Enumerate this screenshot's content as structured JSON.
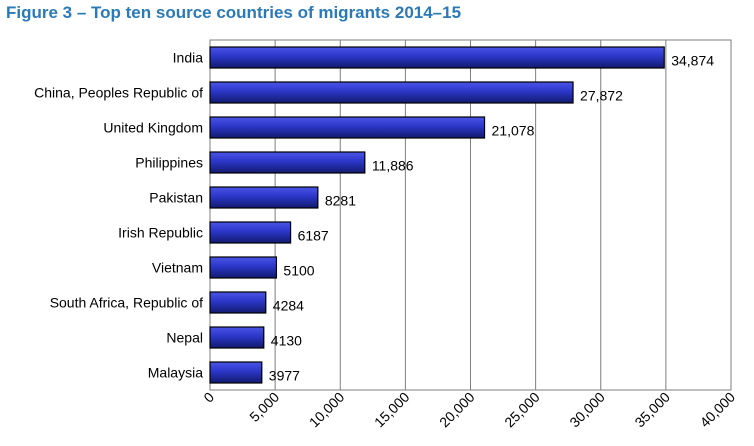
{
  "figure_title": "Figure 3 – Top ten source countries of migrants 2014–15",
  "colors": {
    "title": "#2a7ab8",
    "bar_fill_top": "#4a55e8",
    "bar_fill_mid": "#2b36c8",
    "bar_fill_bottom": "#121a6e",
    "bar_stroke": "#000000",
    "plot_background": "#ffffff",
    "gridline": "#7f7f7f"
  },
  "chart_data": {
    "type": "bar",
    "orientation": "horizontal",
    "title": "Figure 3 – Top ten source countries of migrants 2014–15",
    "xlabel": "",
    "ylabel": "",
    "categories": [
      "India",
      "China, Peoples Republic of",
      "United Kingdom",
      "Philippines",
      "Pakistan",
      "Irish Republic",
      "Vietnam",
      "South Africa, Republic of",
      "Nepal",
      "Malaysia"
    ],
    "values": [
      34874,
      27872,
      21078,
      11886,
      8281,
      6187,
      5100,
      4284,
      4130,
      3977
    ],
    "value_labels": [
      "34,874",
      "27,872",
      "21,078",
      "11,886",
      "8281",
      "6187",
      "5100",
      "4284",
      "4130",
      "3977"
    ],
    "xlim": [
      0,
      40000
    ],
    "x_ticks": [
      0,
      5000,
      10000,
      15000,
      20000,
      25000,
      30000,
      35000,
      40000
    ],
    "x_tick_labels": [
      "0",
      "5,000",
      "10,000",
      "15,000",
      "20,000",
      "25,000",
      "30,000",
      "35,000",
      "40,000"
    ],
    "grid": true,
    "legend": "none"
  }
}
